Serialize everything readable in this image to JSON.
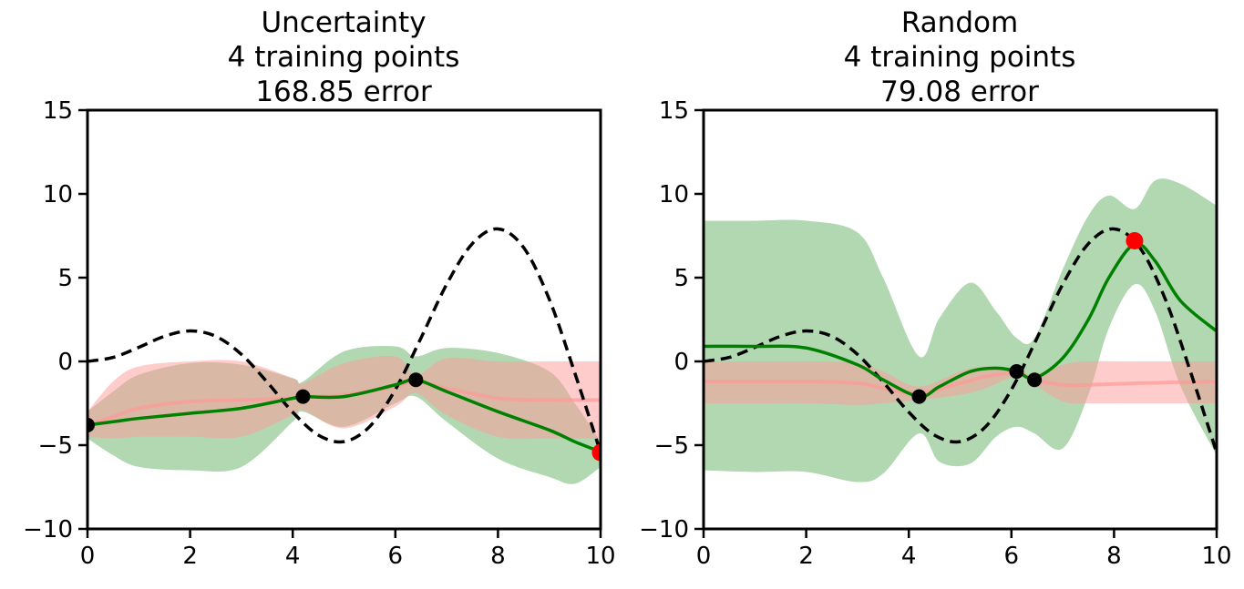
{
  "chart_data": [
    {
      "type": "line",
      "title": [
        "Uncertainty",
        "4 training points",
        "168.85 error"
      ],
      "xlim": [
        0,
        10
      ],
      "ylim": [
        -10,
        15
      ],
      "xticks": [
        "0",
        "2",
        "4",
        "6",
        "8",
        "10"
      ],
      "yticks": [
        "−10",
        "−5",
        "0",
        "5",
        "10",
        "15"
      ],
      "true_x": [
        0,
        0.5,
        1,
        1.5,
        2,
        2.5,
        3,
        3.5,
        4,
        4.5,
        5,
        5.5,
        6,
        6.5,
        7,
        7.5,
        8,
        8.5,
        9,
        9.5,
        10
      ],
      "true_y": [
        0,
        0.24,
        0.84,
        1.5,
        1.82,
        1.5,
        0.42,
        -1.23,
        -3.03,
        -4.4,
        -4.79,
        -3.89,
        -1.68,
        1.4,
        4.6,
        7.03,
        7.91,
        6.8,
        3.71,
        -0.71,
        -5.44
      ],
      "prior": {
        "x": [
          0,
          0.5,
          1,
          2,
          3,
          4,
          4.2,
          5,
          6,
          6.4,
          7,
          8,
          9,
          10
        ],
        "mean": [
          -3.8,
          -3.3,
          -2.8,
          -2.4,
          -2.3,
          -2.2,
          -2.1,
          -2.0,
          -1.5,
          -1.2,
          -1.6,
          -2.2,
          -2.3,
          -2.3
        ],
        "upper": [
          -3.0,
          -1.2,
          -0.3,
          0,
          0,
          -1.0,
          -1.3,
          -0.1,
          0.3,
          -0.8,
          0.2,
          0,
          0,
          0
        ],
        "lower": [
          -4.5,
          -4.6,
          -4.5,
          -4.5,
          -4.5,
          -3.2,
          -2.9,
          -4.0,
          -2.7,
          -1.9,
          -3.2,
          -4.5,
          -4.6,
          -4.6
        ]
      },
      "posterior": {
        "x": [
          0,
          0.5,
          1,
          2,
          3,
          4,
          4.2,
          5,
          6,
          6.4,
          7,
          8,
          9,
          9.5,
          10
        ],
        "mean": [
          -3.8,
          -3.6,
          -3.4,
          -3.1,
          -2.8,
          -2.2,
          -2.1,
          -2.1,
          -1.4,
          -1.1,
          -1.8,
          -3.0,
          -4.1,
          -4.8,
          -5.4
        ],
        "upper": [
          -3.0,
          -1.8,
          -0.8,
          -0.1,
          -0.2,
          -1.0,
          -1.2,
          0.6,
          0.9,
          0.3,
          0.8,
          0.5,
          -0.6,
          -2.5,
          -4.8
        ],
        "lower": [
          -4.6,
          -5.6,
          -6.3,
          -6.5,
          -6.3,
          -3.6,
          -3.0,
          -3.9,
          -2.5,
          -2.1,
          -3.6,
          -5.8,
          -6.9,
          -7.3,
          -6.3
        ]
      },
      "training_points": [
        [
          0,
          -3.8
        ],
        [
          4.2,
          -2.1
        ],
        [
          6.4,
          -1.1
        ]
      ],
      "new_point": [
        10,
        -5.44
      ]
    },
    {
      "type": "line",
      "title": [
        "Random",
        "4 training points",
        "79.08 error"
      ],
      "xlim": [
        0,
        10
      ],
      "ylim": [
        -10,
        15
      ],
      "xticks": [
        "0",
        "2",
        "4",
        "6",
        "8",
        "10"
      ],
      "yticks": [
        "−10",
        "−5",
        "0",
        "5",
        "10",
        "15"
      ],
      "true_x": [
        0,
        0.5,
        1,
        1.5,
        2,
        2.5,
        3,
        3.5,
        4,
        4.5,
        5,
        5.5,
        6,
        6.5,
        7,
        7.5,
        8,
        8.5,
        9,
        9.5,
        10
      ],
      "true_y": [
        0,
        0.24,
        0.84,
        1.5,
        1.82,
        1.5,
        0.42,
        -1.23,
        -3.03,
        -4.4,
        -4.79,
        -3.89,
        -1.68,
        1.4,
        4.6,
        7.03,
        7.91,
        6.8,
        3.71,
        -0.71,
        -5.44
      ],
      "prior": {
        "x": [
          0,
          1,
          2,
          3,
          3.5,
          4.2,
          5,
          5.5,
          6.1,
          6.45,
          7,
          7.5,
          8.5,
          10
        ],
        "mean": [
          -1.2,
          -1.2,
          -1.2,
          -1.3,
          -1.6,
          -1.9,
          -1.3,
          -0.9,
          -0.7,
          -1.1,
          -1.4,
          -1.4,
          -1.3,
          -1.2
        ],
        "upper": [
          0,
          0,
          0,
          -0.1,
          -0.6,
          -1.5,
          -0.6,
          -0.3,
          -0.5,
          -0.8,
          -0.2,
          0,
          0,
          0
        ],
        "lower": [
          -2.5,
          -2.5,
          -2.5,
          -2.6,
          -2.5,
          -2.3,
          -2.0,
          -1.6,
          -0.9,
          -1.4,
          -2.4,
          -2.5,
          -2.5,
          -2.5
        ]
      },
      "posterior": {
        "x": [
          0,
          1,
          2,
          3,
          3.5,
          4.2,
          4.6,
          5.2,
          5.7,
          6.1,
          6.45,
          7,
          7.5,
          7.9,
          8.4,
          8.8,
          9.3,
          10
        ],
        "mean": [
          0.9,
          0.9,
          0.8,
          -0.2,
          -1.1,
          -2.1,
          -1.5,
          -0.6,
          -0.4,
          -0.6,
          -1.0,
          0.2,
          2.5,
          5.0,
          7.0,
          6.0,
          3.6,
          1.8
        ],
        "upper": [
          8.4,
          8.4,
          8.4,
          7.7,
          5.0,
          0.3,
          2.6,
          4.7,
          3.0,
          1.4,
          1.4,
          5.5,
          8.7,
          9.9,
          9.1,
          10.8,
          10.6,
          9.3
        ],
        "lower": [
          -6.5,
          -6.6,
          -6.6,
          -7.2,
          -6.7,
          -4.3,
          -6.0,
          -6.1,
          -4.5,
          -3.9,
          -4.3,
          -5.2,
          -2.0,
          2.0,
          4.6,
          3.0,
          -1.5,
          -5.6
        ]
      },
      "training_points": [
        [
          4.2,
          -2.1
        ],
        [
          6.1,
          -0.6
        ],
        [
          6.45,
          -1.1
        ]
      ],
      "new_point": [
        8.4,
        7.2
      ]
    }
  ],
  "colors": {
    "posterior": "#008000",
    "posterior_band": "#b2d8b2",
    "prior": "#ff9999",
    "prior_band": "#ff9999",
    "true": "#000000",
    "new_point": "#ff0000",
    "training": "#000000"
  }
}
